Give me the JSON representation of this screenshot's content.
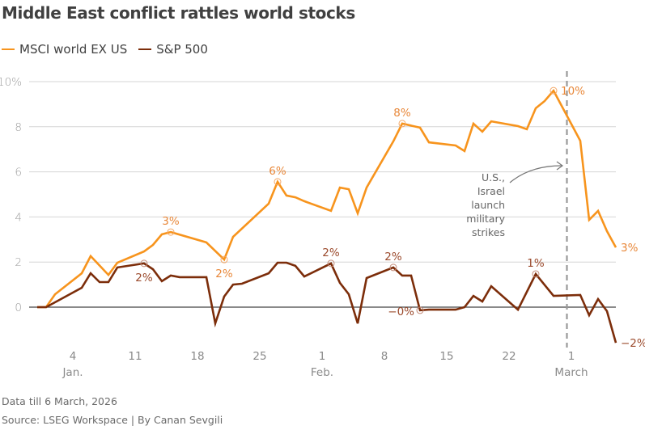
{
  "chart_data": {
    "type": "line",
    "title": "Middle East conflict rattles world stocks",
    "xlabel": "",
    "ylabel": "",
    "x_unit": "day index from Dec. 31, 2025",
    "xlim": [
      0,
      65
    ],
    "ylim": [
      -1.6,
      10
    ],
    "grid": true,
    "legend_position": "top-left",
    "y_ticks": [
      {
        "value": 0,
        "label": "0"
      },
      {
        "value": 2,
        "label": "2"
      },
      {
        "value": 4,
        "label": "4"
      },
      {
        "value": 6,
        "label": "6"
      },
      {
        "value": 8,
        "label": "8"
      },
      {
        "value": 10,
        "label": "10%"
      }
    ],
    "x_ticks": [
      {
        "day": 4,
        "label": "4",
        "sublabel": "Jan."
      },
      {
        "day": 11,
        "label": "11",
        "sublabel": ""
      },
      {
        "day": 18,
        "label": "18",
        "sublabel": ""
      },
      {
        "day": 25,
        "label": "25",
        "sublabel": ""
      },
      {
        "day": 32,
        "label": "1",
        "sublabel": "Feb."
      },
      {
        "day": 39,
        "label": "8",
        "sublabel": ""
      },
      {
        "day": 46,
        "label": "15",
        "sublabel": ""
      },
      {
        "day": 53,
        "label": "22",
        "sublabel": ""
      },
      {
        "day": 60,
        "label": "1",
        "sublabel": "March"
      }
    ],
    "series": [
      {
        "name": "MSCI world EX US",
        "color": "#f7941d",
        "x": [
          0,
          1,
          2,
          5,
          6,
          8,
          9,
          12,
          13,
          14,
          15,
          19,
          21,
          22,
          26,
          27,
          28,
          29,
          30,
          33,
          34,
          35,
          36,
          37,
          40,
          41,
          43,
          44,
          47,
          48,
          49,
          50,
          51,
          54,
          55,
          56,
          57,
          58,
          61,
          62,
          63,
          64,
          65
        ],
        "values": [
          0.0,
          0.0,
          0.57,
          1.5,
          2.26,
          1.43,
          1.97,
          2.47,
          2.76,
          3.23,
          3.33,
          2.87,
          2.11,
          3.12,
          4.59,
          5.56,
          4.95,
          4.87,
          4.7,
          4.27,
          5.3,
          5.23,
          4.16,
          5.3,
          7.35,
          8.14,
          7.96,
          7.31,
          7.17,
          6.92,
          8.14,
          7.78,
          8.24,
          8.03,
          7.89,
          8.82,
          9.14,
          9.6,
          7.38,
          3.87,
          4.27,
          3.37,
          2.65
        ],
        "annotations": [
          {
            "x": 15,
            "y": 3.33,
            "label": "3%",
            "position": "above"
          },
          {
            "x": 21,
            "y": 2.11,
            "label": "2%",
            "position": "below"
          },
          {
            "x": 27,
            "y": 5.56,
            "label": "6%",
            "position": "above"
          },
          {
            "x": 41,
            "y": 8.14,
            "label": "8%",
            "position": "above"
          },
          {
            "x": 58,
            "y": 9.6,
            "label": "10%",
            "position": "right"
          },
          {
            "x": 65,
            "y": 2.65,
            "label": "3%",
            "position": "end"
          }
        ]
      },
      {
        "name": "S&P 500",
        "color": "#7c2d0a",
        "x": [
          0,
          1,
          5,
          6,
          7,
          8,
          9,
          12,
          13,
          14,
          15,
          16,
          19,
          20,
          21,
          22,
          23,
          26,
          27,
          28,
          29,
          30,
          33,
          34,
          35,
          36,
          37,
          40,
          41,
          42,
          43,
          44,
          47,
          48,
          49,
          50,
          51,
          54,
          56,
          58,
          61,
          62,
          63,
          64,
          65
        ],
        "values": [
          0.0,
          0.0,
          0.86,
          1.5,
          1.11,
          1.11,
          1.76,
          1.94,
          1.68,
          1.15,
          1.4,
          1.33,
          1.33,
          -0.72,
          0.47,
          1.0,
          1.04,
          1.5,
          1.97,
          1.97,
          1.83,
          1.36,
          1.94,
          1.08,
          0.57,
          -0.72,
          1.29,
          1.76,
          1.4,
          1.4,
          -0.14,
          -0.11,
          -0.11,
          0.0,
          0.5,
          0.25,
          0.93,
          -0.11,
          1.47,
          0.5,
          0.54,
          -0.36,
          0.36,
          -0.18,
          -1.58
        ],
        "annotations": [
          {
            "x": 12,
            "y": 1.94,
            "label": "2%",
            "position": "below"
          },
          {
            "x": 33,
            "y": 1.94,
            "label": "2%",
            "position": "above"
          },
          {
            "x": 40,
            "y": 1.76,
            "label": "2%",
            "position": "above"
          },
          {
            "x": 43,
            "y": -0.14,
            "label": "−0%",
            "position": "left"
          },
          {
            "x": 56,
            "y": 1.47,
            "label": "1%",
            "position": "above"
          },
          {
            "x": 65,
            "y": -1.58,
            "label": "−2%",
            "position": "end"
          }
        ]
      }
    ],
    "event_marker": {
      "x": 59.5,
      "style": "dashed",
      "color": "#999999",
      "label_lines": [
        "U.S.,",
        "Israel",
        "launch",
        "military",
        "strikes"
      ]
    }
  },
  "legend": [
    {
      "label": "MSCI world EX US",
      "color": "#f7941d"
    },
    {
      "label": "S&P 500",
      "color": "#7c2d0a"
    }
  ],
  "footer": {
    "note": "Data till 6 March, 2026",
    "source": "Source: LSEG Workspace | By Canan Sevgili"
  }
}
